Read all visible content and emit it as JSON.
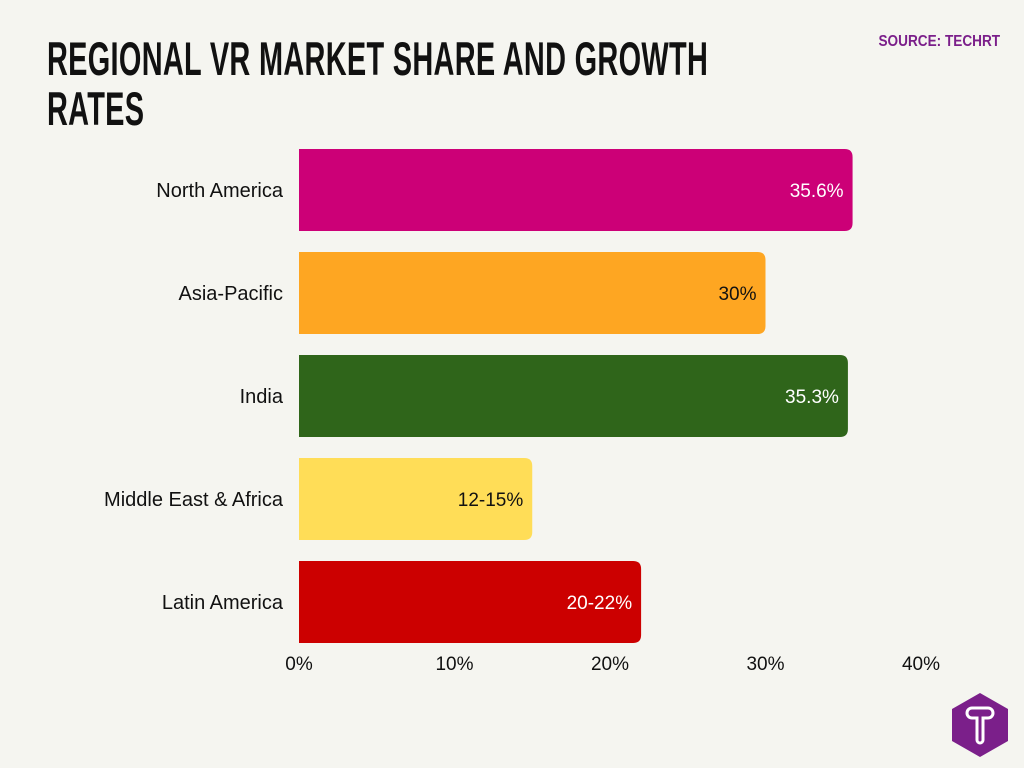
{
  "chart_data": {
    "type": "bar",
    "orientation": "horizontal",
    "title": "REGIONAL VR MARKET SHARE AND GROWTH RATES",
    "source": "SOURCE: TECHRT",
    "categories": [
      "North America",
      "Asia-Pacific",
      "India",
      "Middle East & Africa",
      "Latin America"
    ],
    "values": [
      35.6,
      30,
      35.3,
      15,
      22
    ],
    "data_labels": [
      "35.6%",
      "30%",
      "35.3%",
      "12-15%",
      "20-22%"
    ],
    "colors": [
      "#cc0077",
      "#fea622",
      "#2f651a",
      "#ffdd57",
      "#cc0000"
    ],
    "label_colors": [
      "#ffffff",
      "#111111",
      "#ffffff",
      "#111111",
      "#ffffff"
    ],
    "xlim": [
      0,
      40
    ],
    "xticks": [
      "0%",
      "10%",
      "20%",
      "30%",
      "40%"
    ],
    "xtick_values": [
      0,
      10,
      20,
      30,
      40
    ],
    "grid": false,
    "legend": "none"
  },
  "brand": {
    "logo": "T",
    "color": "#7b1f8a"
  }
}
